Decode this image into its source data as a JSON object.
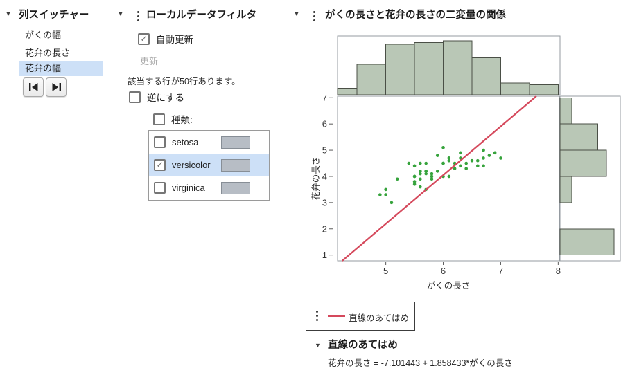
{
  "column_switcher": {
    "title": "列スイッチャー",
    "items": [
      {
        "label": "がくの幅",
        "selected": false
      },
      {
        "label": "花弁の長さ",
        "selected": false
      },
      {
        "label": "花弁の幅",
        "selected": true
      }
    ],
    "nav_buttons": [
      {
        "icon": "skip-to-first-icon"
      },
      {
        "icon": "skip-to-last-icon"
      }
    ]
  },
  "data_filter": {
    "title": "ローカルデータフィルタ",
    "auto_update": {
      "label": "自動更新",
      "checked": true
    },
    "update_button": {
      "label": "更新",
      "enabled": false
    },
    "status_text": "該当する行が50行あります。",
    "invert": {
      "label": "逆にする",
      "checked": false
    },
    "category": {
      "label": "種類:",
      "checked": false
    },
    "levels": [
      {
        "label": "setosa",
        "checked": false,
        "selected": false,
        "count": 50
      },
      {
        "label": "versicolor",
        "checked": true,
        "selected": true,
        "count": 50
      },
      {
        "label": "virginica",
        "checked": false,
        "selected": false,
        "count": 50
      }
    ]
  },
  "bivariate": {
    "title": "がくの長さと花弁の長さの二変量の関係",
    "legend": {
      "label": "直線のあてはめ"
    },
    "fit_section": {
      "title": "直線のあてはめ",
      "equation": "花弁の長さ = -7.101443 + 1.858433*がくの長さ"
    }
  },
  "chart_data": {
    "type": "scatter",
    "title": "がくの長さと花弁の長さの二変量の関係",
    "xlabel": "がくの長さ",
    "ylabel": "花弁の長さ",
    "xlim": [
      4.16,
      8.02
    ],
    "ylim": [
      0.78,
      7.06
    ],
    "x_ticks": [
      5,
      6,
      7,
      8
    ],
    "y_ticks": [
      1,
      2,
      3,
      4,
      5,
      6,
      7
    ],
    "grid": false,
    "points": [
      [
        7.0,
        4.7
      ],
      [
        6.4,
        4.5
      ],
      [
        6.9,
        4.9
      ],
      [
        5.5,
        4.0
      ],
      [
        6.5,
        4.6
      ],
      [
        5.7,
        4.5
      ],
      [
        6.3,
        4.7
      ],
      [
        4.9,
        3.3
      ],
      [
        6.6,
        4.6
      ],
      [
        5.2,
        3.9
      ],
      [
        5.0,
        3.5
      ],
      [
        5.9,
        4.2
      ],
      [
        6.0,
        4.0
      ],
      [
        6.1,
        4.7
      ],
      [
        5.6,
        3.6
      ],
      [
        6.7,
        4.4
      ],
      [
        5.6,
        4.5
      ],
      [
        5.8,
        4.1
      ],
      [
        6.2,
        4.5
      ],
      [
        5.6,
        3.9
      ],
      [
        5.9,
        4.8
      ],
      [
        6.1,
        4.0
      ],
      [
        6.3,
        4.9
      ],
      [
        6.1,
        4.7
      ],
      [
        6.4,
        4.3
      ],
      [
        6.6,
        4.4
      ],
      [
        6.8,
        4.8
      ],
      [
        6.7,
        5.0
      ],
      [
        6.0,
        4.5
      ],
      [
        5.7,
        3.5
      ],
      [
        5.5,
        3.8
      ],
      [
        5.5,
        3.7
      ],
      [
        5.8,
        3.9
      ],
      [
        6.0,
        5.1
      ],
      [
        5.4,
        4.5
      ],
      [
        6.0,
        4.5
      ],
      [
        6.7,
        4.7
      ],
      [
        6.3,
        4.4
      ],
      [
        5.6,
        4.1
      ],
      [
        5.5,
        4.0
      ],
      [
        5.5,
        4.4
      ],
      [
        6.1,
        4.6
      ],
      [
        5.8,
        4.0
      ],
      [
        5.0,
        3.3
      ],
      [
        5.6,
        4.2
      ],
      [
        5.7,
        4.2
      ],
      [
        5.7,
        4.2
      ],
      [
        6.2,
        4.3
      ],
      [
        5.1,
        3.0
      ],
      [
        5.7,
        4.1
      ]
    ],
    "fit_line": {
      "intercept": -7.101443,
      "slope": 1.858433,
      "label": "直線のあてはめ"
    },
    "x_histogram": {
      "bin_start": 4.0,
      "bin_width": 0.5,
      "counts": [
        4,
        18,
        30,
        31,
        32,
        22,
        7,
        6
      ]
    },
    "y_histogram": {
      "bin_start": 1.0,
      "bin_width": 1.0,
      "counts": [
        50,
        0,
        11,
        43,
        35,
        11
      ]
    }
  },
  "colors": {
    "histogram_fill": "#b9c7b6",
    "histogram_stroke": "#4a4f46",
    "frame": "#959ba1",
    "point_green": "#36a33c",
    "fit_red": "#d5495c",
    "selection_blue": "#cde0f7",
    "filter_bar_fill": "#b7bdc5",
    "filter_bar_stroke": "#878e96",
    "tick_text": "#333333"
  }
}
